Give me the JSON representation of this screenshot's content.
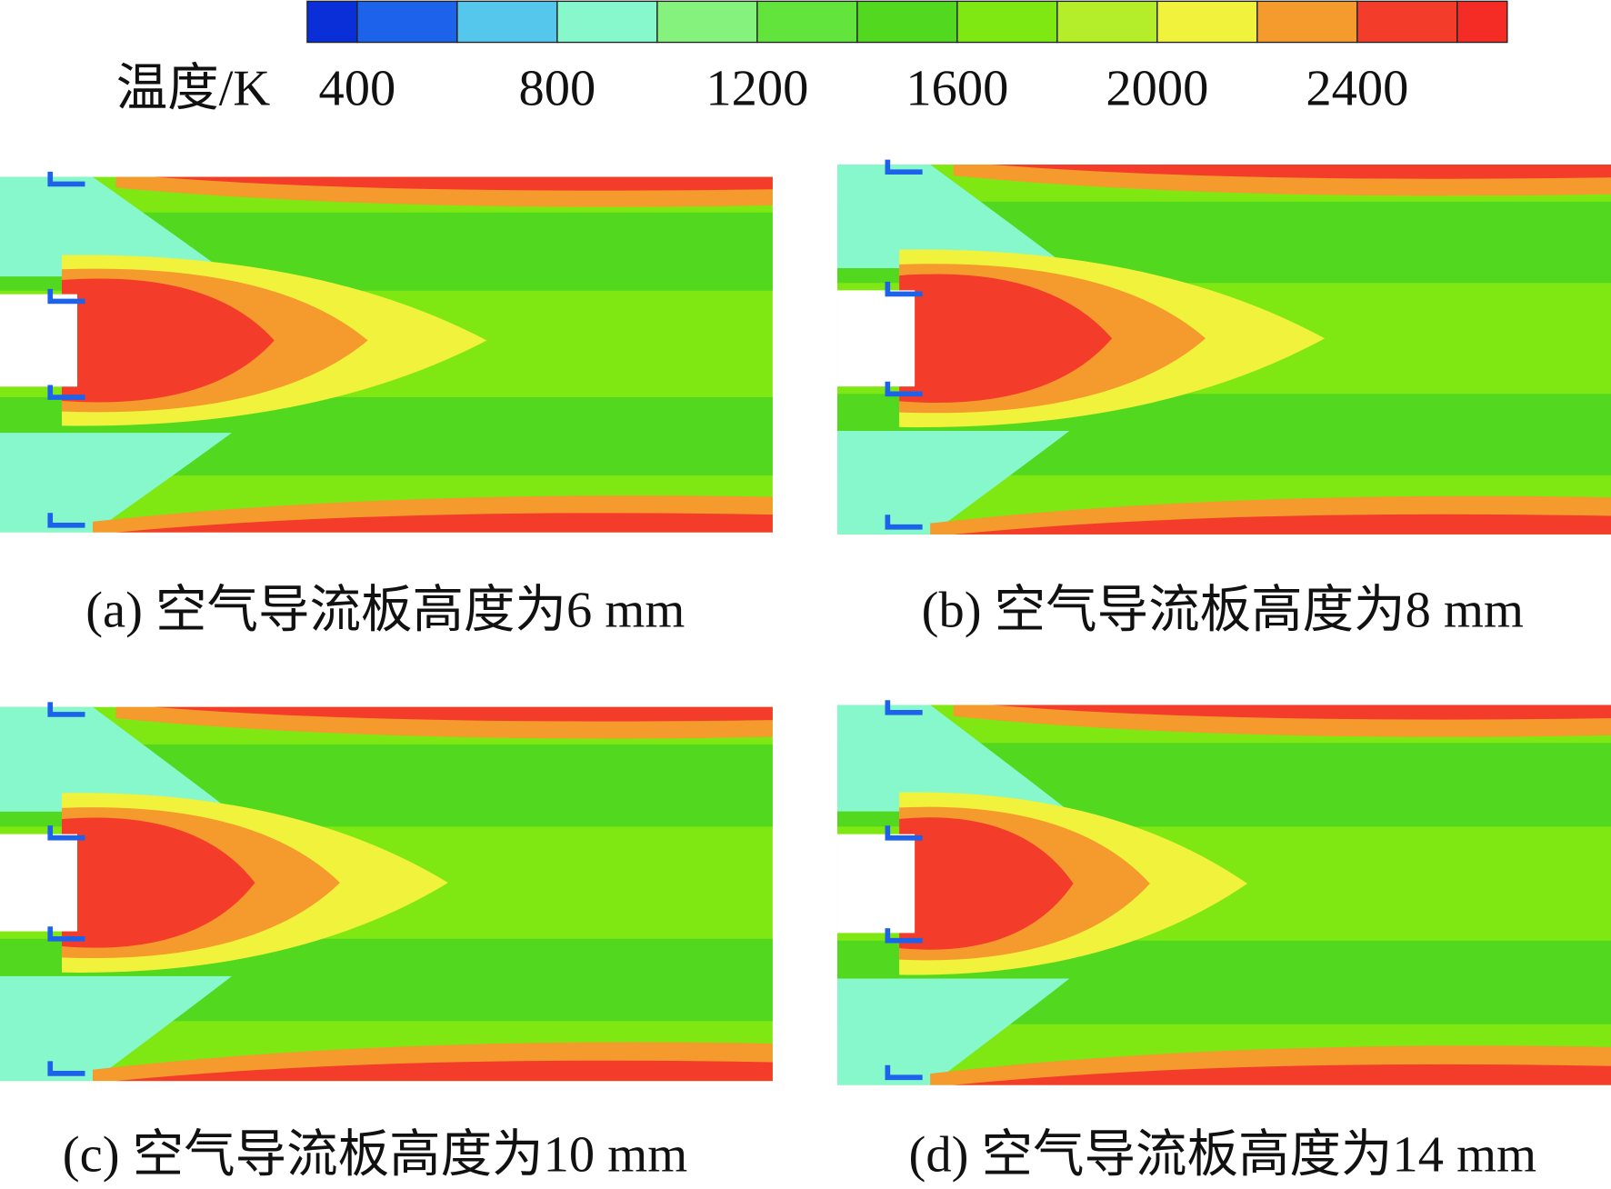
{
  "colorbar": {
    "label": "温度/K",
    "ticks": [
      400,
      800,
      1200,
      1600,
      2000,
      2400
    ],
    "colors": [
      "#0a2fd8",
      "#1c62ea",
      "#55c6ec",
      "#86f8cc",
      "#84f27c",
      "#62e43c",
      "#52d81e",
      "#7fe812",
      "#b4ee2a",
      "#f0f23c",
      "#f59a2c",
      "#f33d2a",
      "#f52b26"
    ]
  },
  "panels": [
    {
      "caption": "(a) 空气导流板高度为6 mm"
    },
    {
      "caption": "(b) 空气导流板高度为8 mm"
    },
    {
      "caption": "(c) 空气导流板高度为10 mm"
    },
    {
      "caption": "(d) 空气导流板高度为14 mm"
    }
  ]
}
